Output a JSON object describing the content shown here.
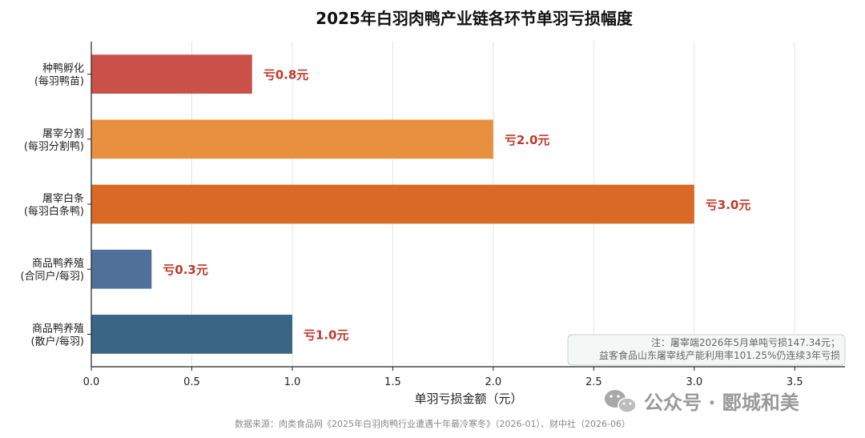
{
  "chart_data": {
    "type": "bar",
    "orientation": "horizontal",
    "title": "2025年白羽肉鸭产业链各环节单羽亏损幅度",
    "xlabel": "单羽亏损金额（元）",
    "ylabel": "",
    "xlim": [
      0,
      3.75
    ],
    "xticks": [
      "0.0",
      "0.5",
      "1.0",
      "1.5",
      "2.0",
      "2.5",
      "3.0",
      "3.5"
    ],
    "xtick_values": [
      0,
      0.5,
      1.0,
      1.5,
      2.0,
      2.5,
      3.0,
      3.5
    ],
    "grid": "vertical",
    "categories": [
      [
        "种鸭孵化",
        "(每羽鸭苗)"
      ],
      [
        "屠宰分割",
        "(每羽分割鸭)"
      ],
      [
        "屠宰白条",
        "(每羽白条鸭)"
      ],
      [
        "商品鸭养殖",
        "(合同户/每羽)"
      ],
      [
        "商品鸭养殖",
        "(散户/每羽)"
      ]
    ],
    "values": [
      0.8,
      2.0,
      3.0,
      0.3,
      1.0
    ],
    "data_labels": [
      "亏0.8元",
      "亏2.0元",
      "亏3.0元",
      "亏0.3元",
      "亏1.0元"
    ],
    "colors": [
      "#c9514a",
      "#e8903f",
      "#d96a26",
      "#4e7099",
      "#3b6585"
    ],
    "label_color": "#c0392b",
    "note": {
      "placement": "bottom-right",
      "lines": [
        "注：屠宰端2026年5月单吨亏损147.34元；",
        "益客食品山东屠宰线产能利用率101.25%仍连续3年亏损"
      ]
    }
  },
  "source": "数据来源：肉类食品网《2025年白羽肉鸭行业遭遇十年最冷寒冬》（2026-01）、财中社（2026-06）",
  "watermark": {
    "icon": "wechat-icon",
    "text": "公众号 · 郾城和美"
  }
}
